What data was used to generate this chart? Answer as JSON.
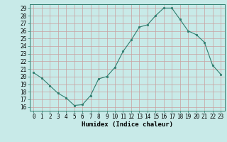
{
  "x": [
    0,
    1,
    2,
    3,
    4,
    5,
    6,
    7,
    8,
    9,
    10,
    11,
    12,
    13,
    14,
    15,
    16,
    17,
    18,
    19,
    20,
    21,
    22,
    23
  ],
  "y": [
    20.5,
    19.8,
    18.8,
    17.8,
    17.2,
    16.2,
    16.3,
    17.5,
    19.7,
    20.0,
    21.2,
    23.3,
    24.8,
    26.5,
    26.8,
    28.0,
    29.0,
    29.0,
    27.5,
    26.0,
    25.5,
    24.5,
    21.5,
    20.3
  ],
  "line_color": "#2e7d6e",
  "marker": "o",
  "marker_size": 2.0,
  "bg_color": "#c8eae8",
  "plot_bg_color": "#c8eae8",
  "grid_color": "#c8a0a0",
  "xlabel": "Humidex (Indice chaleur)",
  "ylabel_ticks": [
    16,
    17,
    18,
    19,
    20,
    21,
    22,
    23,
    24,
    25,
    26,
    27,
    28,
    29
  ],
  "xlim": [
    -0.5,
    23.5
  ],
  "ylim": [
    15.5,
    29.5
  ],
  "tick_fontsize": 5.5,
  "xlabel_fontsize": 6.5
}
